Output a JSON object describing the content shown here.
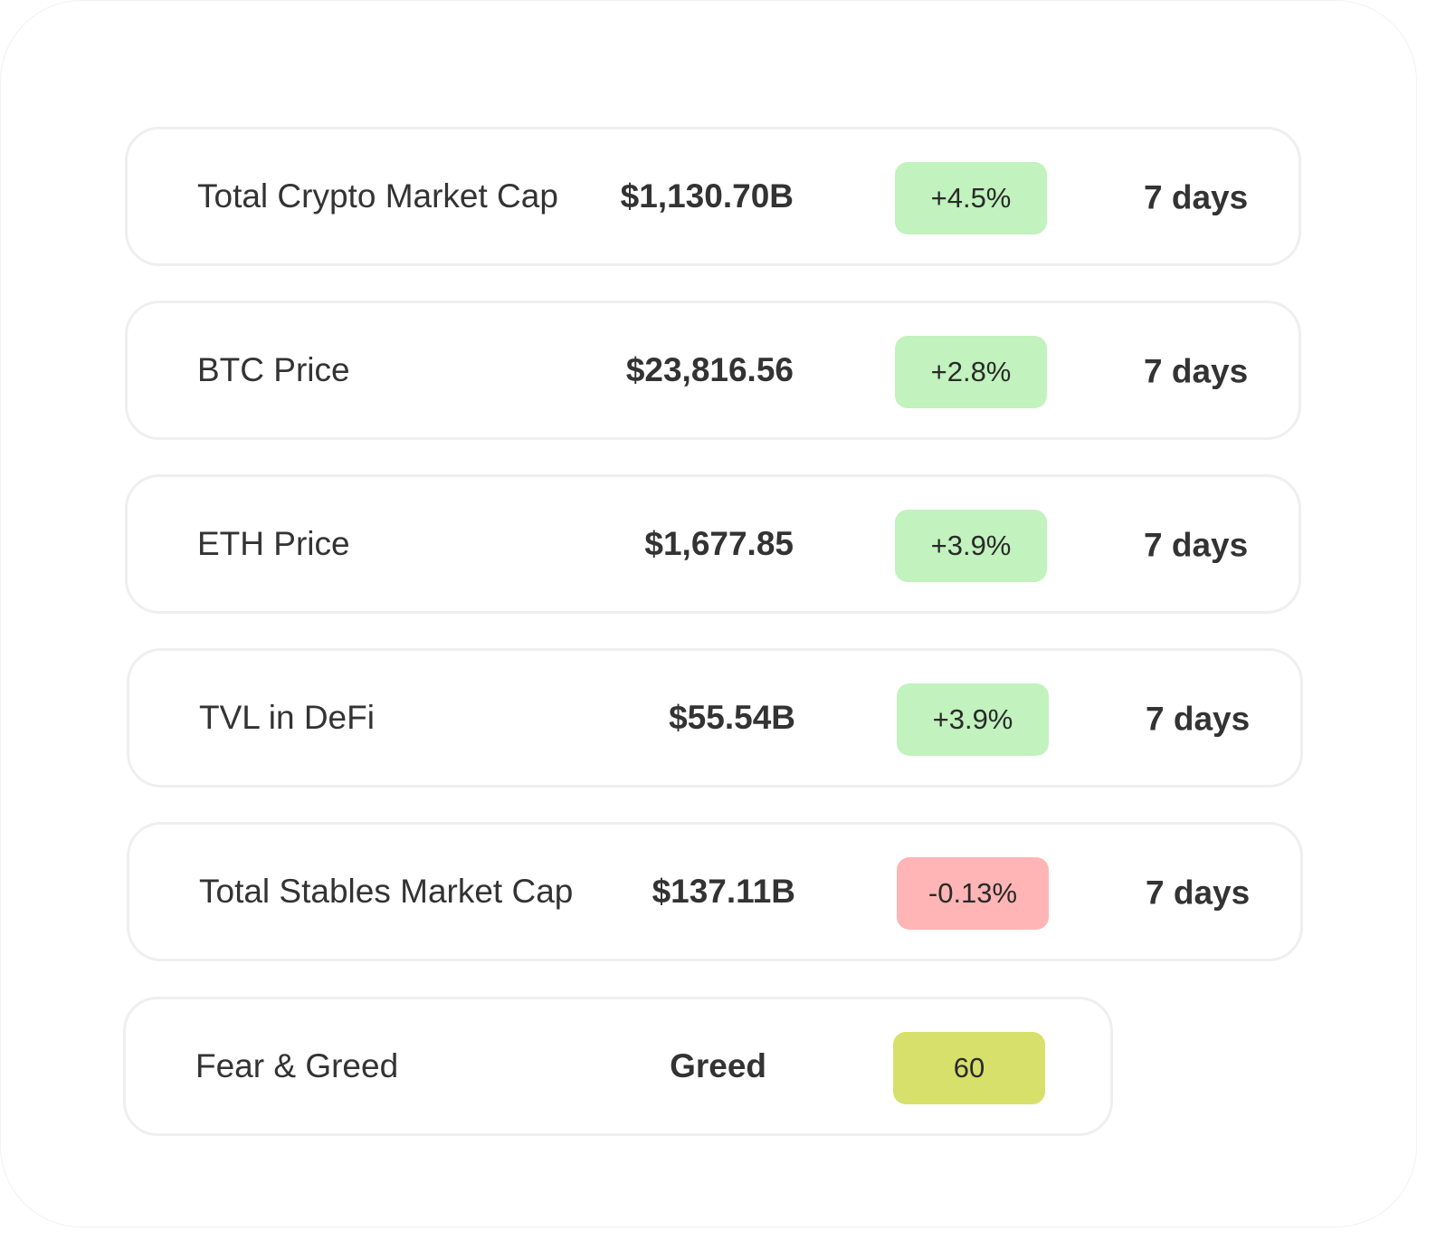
{
  "colors": {
    "positive_badge": "#c2f2be",
    "negative_badge": "#ffb5b5",
    "neutral_badge": "#d7e06a",
    "row_border": "#efefef",
    "text": "#333333"
  },
  "metrics": [
    {
      "label": "Total Crypto Market Cap",
      "value": "$1,130.70B",
      "change": "+4.5%",
      "period": "7 days",
      "trend": "positive"
    },
    {
      "label": "BTC Price",
      "value": "$23,816.56",
      "change": "+2.8%",
      "period": "7 days",
      "trend": "positive"
    },
    {
      "label": "ETH Price",
      "value": "$1,677.85",
      "change": "+3.9%",
      "period": "7 days",
      "trend": "positive"
    },
    {
      "label": "TVL in DeFi",
      "value": "$55.54B",
      "change": "+3.9%",
      "period": "7 days",
      "trend": "positive"
    },
    {
      "label": "Total Stables Market Cap",
      "value": "$137.11B",
      "change": "-0.13%",
      "period": "7 days",
      "trend": "negative"
    }
  ],
  "fear_greed": {
    "label": "Fear & Greed",
    "value": "Greed",
    "score": "60"
  }
}
